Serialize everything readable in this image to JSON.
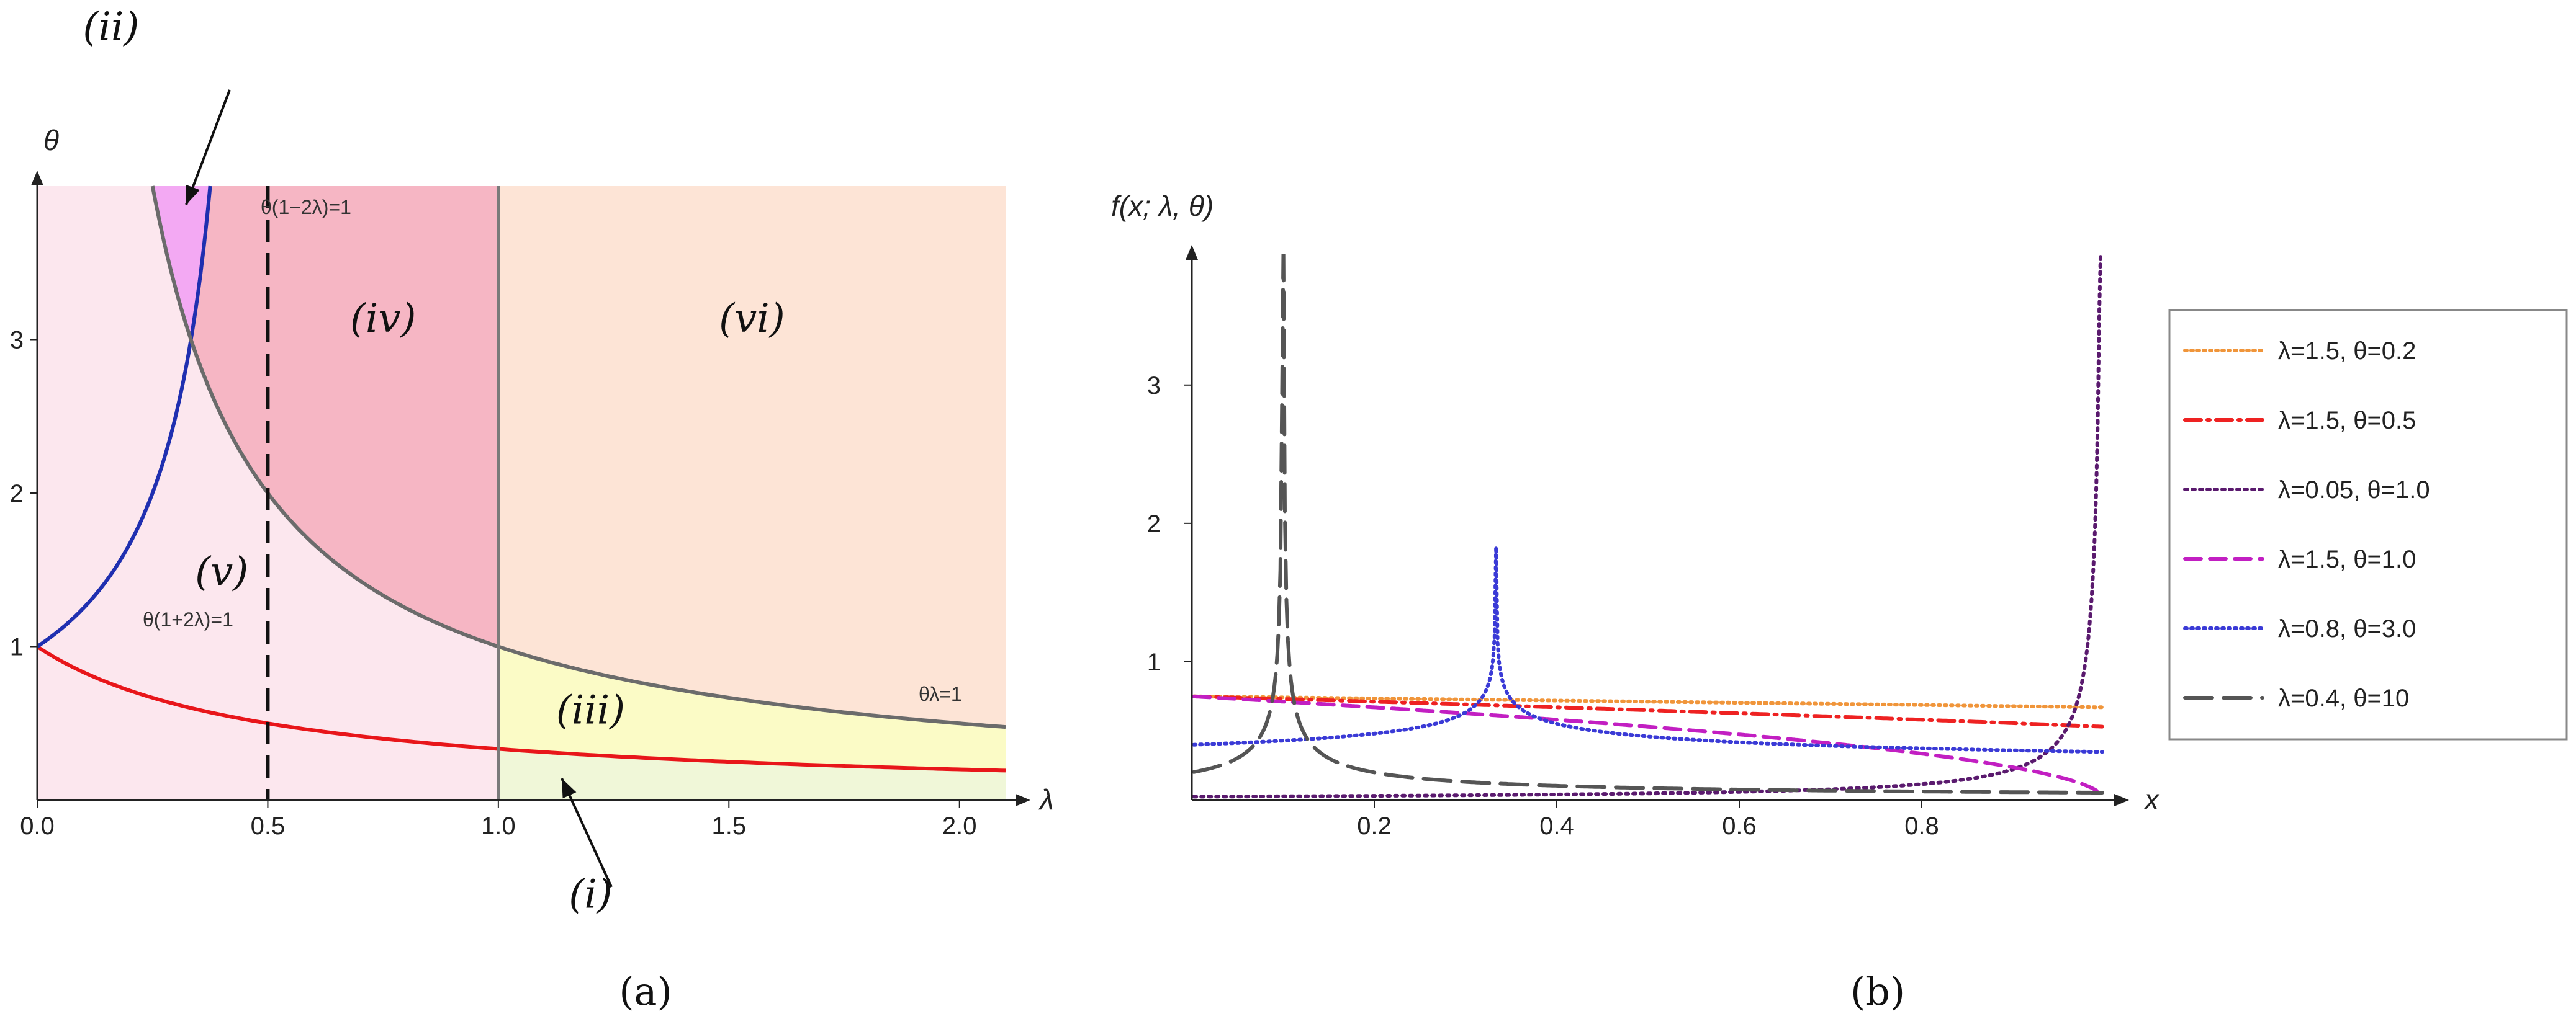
{
  "chart_data": [
    {
      "panel": "a",
      "type": "area",
      "panel_label": "(a)",
      "xlabel": "λ",
      "ylabel": "θ",
      "xlim": [
        0,
        2.1
      ],
      "ylim": [
        0,
        4
      ],
      "xticks": [
        "0.0",
        "0.5",
        "1.0",
        "1.5",
        "2.0"
      ],
      "xtick_values": [
        0,
        0.5,
        1.0,
        1.5,
        2.0
      ],
      "yticks": [
        "1",
        "2",
        "3"
      ],
      "ytick_values": [
        1,
        2,
        3
      ],
      "curves": [
        {
          "name": "θ(1+2λ)=1",
          "equation": "theta = 1/(1+2*lambda)",
          "color": "#e8161a"
        },
        {
          "name": "θ(1−2λ)=1",
          "equation": "theta = 1/(1-2*lambda)",
          "color": "#1f2fb0"
        },
        {
          "name": "θλ=1",
          "equation": "theta = 1/lambda",
          "color": "#6b6b6b"
        }
      ],
      "vertical_lines": [
        {
          "x": 0.5,
          "style": "dashed",
          "color": "#111111"
        },
        {
          "x": 1.0,
          "style": "solid",
          "color": "#7a7a7a"
        }
      ],
      "regions": [
        {
          "label": "(i)",
          "color": "#f0f7d8",
          "label_x": 1.2,
          "label_y": -0.7
        },
        {
          "label": "(ii)",
          "color": "#f3a9f3",
          "label_x": 0.16,
          "label_y": 4.95
        },
        {
          "label": "(iii)",
          "color": "#fbfbc6",
          "label_x": 1.2,
          "label_y": 0.5
        },
        {
          "label": "(iv)",
          "color": "#f6b6c4",
          "label_x": 0.75,
          "label_y": 3.05
        },
        {
          "label": "(v)",
          "color": "#fce7ee",
          "label_x": 0.4,
          "label_y": 1.4
        },
        {
          "label": "(vi)",
          "color": "#fde4d6",
          "label_x": 1.55,
          "label_y": 3.05
        }
      ]
    },
    {
      "panel": "b",
      "type": "line",
      "panel_label": "(b)",
      "xlabel": "x",
      "ylabel": "f(x; λ, θ)",
      "xlim": [
        0,
        1
      ],
      "ylim": [
        0,
        3.9
      ],
      "xticks": [
        "0.2",
        "0.4",
        "0.6",
        "0.8"
      ],
      "xtick_values": [
        0.2,
        0.4,
        0.6,
        0.8
      ],
      "yticks": [
        "1",
        "2",
        "3"
      ],
      "ytick_values": [
        1,
        2,
        3
      ],
      "series": [
        {
          "name": "λ=1.5, θ=0.2",
          "lambda": 1.5,
          "theta": 0.2,
          "color": "#f0953a",
          "dash": "3,7"
        },
        {
          "name": "λ=1.5, θ=0.5",
          "lambda": 1.5,
          "theta": 0.5,
          "color": "#ee2222",
          "dash": "26,10,4,10"
        },
        {
          "name": "λ=0.05, θ=1.0",
          "lambda": 0.05,
          "theta": 1.0,
          "color": "#5a1a6e",
          "dash": "4,8"
        },
        {
          "name": "λ=1.5, θ=1.0",
          "lambda": 1.5,
          "theta": 1.0,
          "color": "#c21fc2",
          "dash": "26,14"
        },
        {
          "name": "λ=0.8, θ=3.0",
          "lambda": 0.8,
          "theta": 3.0,
          "color": "#3a3ad6",
          "dash": "3,7"
        },
        {
          "name": "λ=0.4, θ=10",
          "lambda": 0.4,
          "theta": 10,
          "color": "#555555",
          "dash": "44,18"
        }
      ]
    }
  ]
}
